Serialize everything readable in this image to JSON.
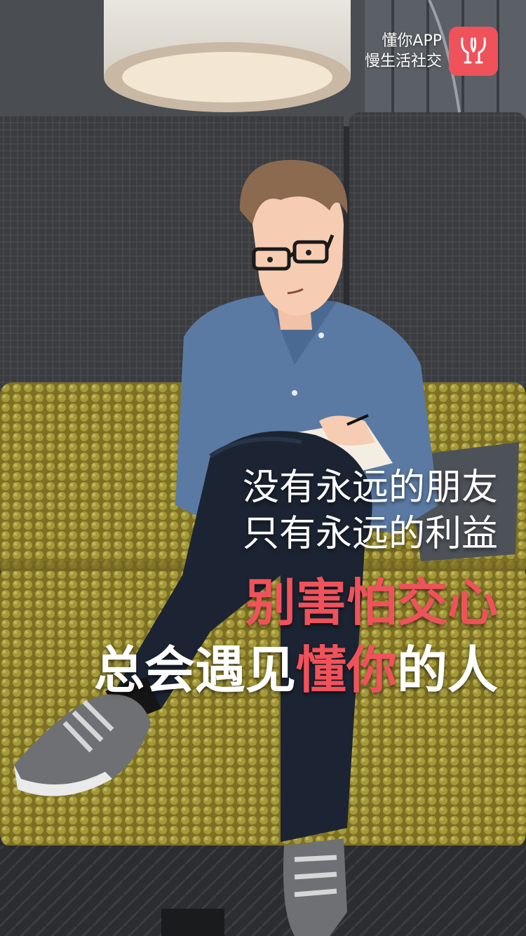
{
  "brand": {
    "app_name": "懂你APP",
    "slogan": "慢生活社交",
    "logo_icon": "wine-glasses-icon",
    "accent_color": "#f0525b"
  },
  "headline": {
    "line1": "没有永远的朋友",
    "line2": "只有永远的利益",
    "line3": "别害怕交心",
    "line4_part1": "总会遇见",
    "line4_accent": "懂你",
    "line4_part2": "的人"
  },
  "illustration": {
    "subject": "man-reading-notebook-on-sofa"
  }
}
